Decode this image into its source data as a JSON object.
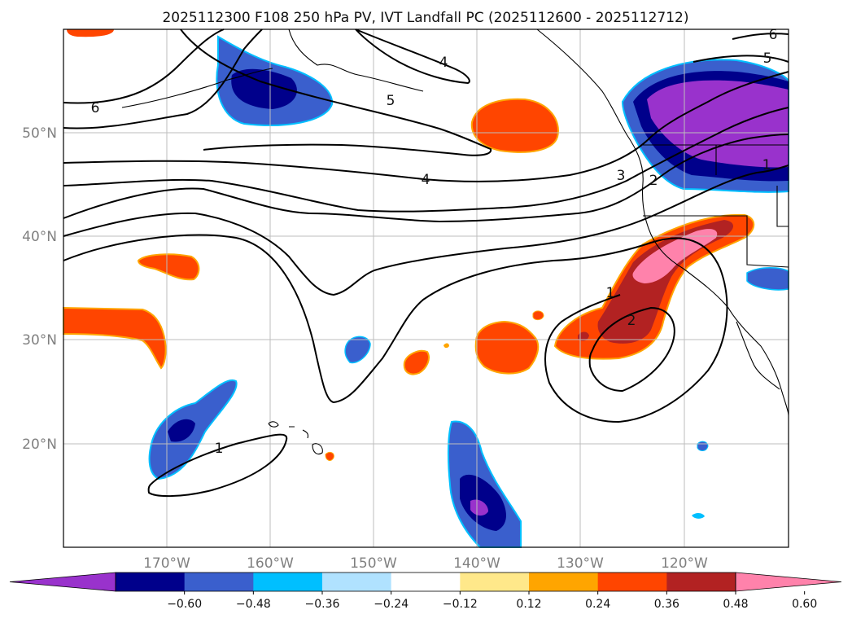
{
  "title": "2025112300 F108 250 hPa PV, IVT Landfall PC (2025112600 - 2025112712)",
  "lat_labels": [
    "50°N",
    "40°N",
    "30°N",
    "20°N"
  ],
  "lon_labels": [
    "170°W",
    "160°W",
    "150°W",
    "140°W",
    "130°W",
    "120°W"
  ],
  "contour_labels": [
    "6",
    "5",
    "4",
    "4",
    "3",
    "2",
    "1",
    "1",
    "1",
    "2",
    "6",
    "5"
  ],
  "colorbar": {
    "tick_labels": [
      "−0.60",
      "−0.48",
      "−0.36",
      "−0.24",
      "−0.12",
      "0.12",
      "0.24",
      "0.36",
      "0.48",
      "0.60"
    ],
    "colors": [
      "#9932cc",
      "#00008b",
      "#3a5fcd",
      "#00bfff",
      "#b0e2ff",
      "#ffffff",
      "#ffe88a",
      "#ffa500",
      "#ff4500",
      "#b22222",
      "#ff82ab"
    ]
  }
}
